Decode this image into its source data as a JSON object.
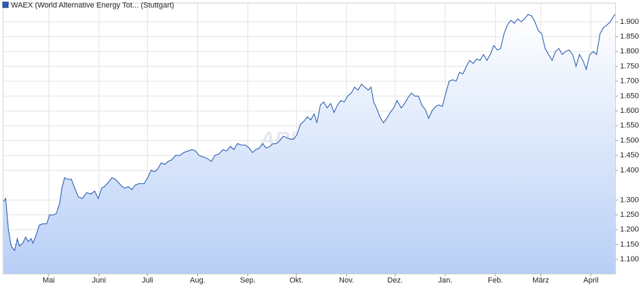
{
  "chart_data": {
    "type": "area",
    "legend_label": "WAEX (World Alternative Energy Tot... (Stuttgart)",
    "watermark": "ARIVA.DE",
    "grid": true,
    "xlim": [
      2,
      380
    ],
    "ylim": [
      1052,
      1962
    ],
    "xticks": [
      {
        "value": 30,
        "label": "Mai"
      },
      {
        "value": 61,
        "label": "Juni"
      },
      {
        "value": 91,
        "label": "Juli"
      },
      {
        "value": 122,
        "label": "Aug."
      },
      {
        "value": 153,
        "label": "Sep."
      },
      {
        "value": 183,
        "label": "Okt."
      },
      {
        "value": 214,
        "label": "Nov."
      },
      {
        "value": 244,
        "label": "Dez."
      },
      {
        "value": 275,
        "label": "Jan."
      },
      {
        "value": 306,
        "label": "Feb."
      },
      {
        "value": 334,
        "label": "März"
      },
      {
        "value": 365,
        "label": "April"
      }
    ],
    "yticks": [
      {
        "value": 1100,
        "label": "1.100"
      },
      {
        "value": 1150,
        "label": "1.150"
      },
      {
        "value": 1200,
        "label": "1.200"
      },
      {
        "value": 1250,
        "label": "1.250"
      },
      {
        "value": 1300,
        "label": "1.300"
      },
      {
        "value": 1400,
        "label": "1.400"
      },
      {
        "value": 1450,
        "label": "1.450"
      },
      {
        "value": 1500,
        "label": "1.500"
      },
      {
        "value": 1550,
        "label": "1.550"
      },
      {
        "value": 1600,
        "label": "1.600"
      },
      {
        "value": 1650,
        "label": "1.650"
      },
      {
        "value": 1700,
        "label": "1.700"
      },
      {
        "value": 1750,
        "label": "1.750"
      },
      {
        "value": 1800,
        "label": "1.800"
      },
      {
        "value": 1850,
        "label": "1.850"
      },
      {
        "value": 1900,
        "label": "1.900"
      }
    ],
    "series": [
      {
        "name": "WAEX (World Alternative Energy Tot... (Stuttgart)",
        "color": "#2a5db0",
        "x": [
          2.1,
          3.4,
          5.1,
          6.8,
          8.9,
          10.6,
          11.9,
          14.0,
          15.7,
          17.4,
          19.1,
          20.3,
          22.4,
          24.1,
          26.3,
          28.8,
          30.5,
          33.0,
          34.7,
          36.8,
          38.1,
          39.8,
          41.5,
          44.0,
          45.7,
          48.3,
          50.8,
          53.4,
          55.9,
          58.4,
          60.6,
          62.7,
          64.4,
          66.9,
          69.0,
          71.2,
          73.7,
          75.4,
          77.1,
          79.2,
          81.3,
          83.4,
          85.6,
          88.9,
          91.1,
          93.2,
          95.3,
          97.4,
          99.5,
          101.7,
          103.8,
          105.9,
          108.4,
          111.0,
          113.5,
          116.1,
          118.6,
          120.7,
          122.8,
          125.4,
          127.9,
          130.5,
          132.6,
          135.1,
          137.7,
          139.8,
          142.3,
          144.4,
          146.5,
          149.1,
          151.6,
          153.8,
          155.9,
          158.0,
          160.1,
          162.2,
          164.3,
          166.5,
          168.6,
          170.7,
          172.8,
          174.9,
          177.0,
          179.2,
          181.3,
          183.4,
          185.5,
          187.6,
          189.8,
          191.9,
          194.0,
          195.7,
          197.8,
          199.9,
          202.0,
          204.2,
          206.3,
          208.4,
          210.5,
          212.6,
          214.7,
          216.9,
          219.0,
          221.1,
          223.2,
          225.3,
          227.4,
          229.1,
          230.8,
          232.5,
          234.6,
          236.8,
          238.9,
          241.0,
          243.1,
          245.2,
          247.8,
          249.9,
          252.0,
          254.1,
          256.2,
          258.4,
          260.5,
          262.6,
          264.7,
          266.8,
          269.0,
          271.1,
          273.2,
          275.3,
          277.4,
          279.5,
          281.7,
          283.8,
          285.9,
          288.0,
          290.1,
          292.2,
          294.4,
          296.5,
          298.6,
          300.7,
          302.8,
          305.0,
          307.1,
          309.2,
          311.3,
          313.4,
          315.5,
          317.7,
          319.8,
          321.9,
          324.0,
          326.1,
          328.3,
          330.4,
          332.5,
          334.6,
          336.7,
          338.8,
          341.0,
          343.1,
          345.2,
          347.3,
          349.4,
          351.5,
          353.7,
          355.8,
          357.9,
          360.0,
          362.1,
          364.3,
          366.4,
          368.5,
          370.6,
          372.7,
          374.9,
          377.0,
          379.1,
          379.9
        ],
        "values": [
          1295,
          1305,
          1200,
          1145,
          1130,
          1170,
          1145,
          1155,
          1175,
          1160,
          1170,
          1155,
          1185,
          1215,
          1220,
          1220,
          1250,
          1250,
          1255,
          1290,
          1340,
          1375,
          1370,
          1370,
          1345,
          1310,
          1305,
          1325,
          1320,
          1330,
          1305,
          1340,
          1345,
          1360,
          1375,
          1370,
          1355,
          1345,
          1340,
          1345,
          1335,
          1350,
          1355,
          1355,
          1375,
          1400,
          1395,
          1405,
          1425,
          1420,
          1430,
          1435,
          1450,
          1450,
          1460,
          1465,
          1470,
          1465,
          1450,
          1445,
          1440,
          1430,
          1450,
          1455,
          1470,
          1465,
          1480,
          1470,
          1490,
          1485,
          1485,
          1475,
          1460,
          1470,
          1475,
          1490,
          1475,
          1480,
          1490,
          1490,
          1500,
          1515,
          1510,
          1505,
          1505,
          1520,
          1555,
          1565,
          1580,
          1570,
          1590,
          1560,
          1620,
          1630,
          1610,
          1625,
          1595,
          1620,
          1635,
          1630,
          1650,
          1660,
          1680,
          1670,
          1690,
          1680,
          1670,
          1680,
          1630,
          1610,
          1580,
          1560,
          1575,
          1595,
          1610,
          1635,
          1610,
          1625,
          1645,
          1660,
          1650,
          1650,
          1620,
          1605,
          1575,
          1600,
          1615,
          1620,
          1615,
          1660,
          1700,
          1705,
          1700,
          1730,
          1725,
          1750,
          1770,
          1760,
          1775,
          1770,
          1790,
          1770,
          1790,
          1820,
          1805,
          1810,
          1860,
          1890,
          1905,
          1895,
          1910,
          1900,
          1910,
          1925,
          1920,
          1900,
          1870,
          1860,
          1810,
          1790,
          1770,
          1800,
          1810,
          1790,
          1800,
          1805,
          1790,
          1750,
          1790,
          1770,
          1740,
          1790,
          1800,
          1790,
          1860,
          1880,
          1890,
          1900,
          1920,
          1925
        ]
      }
    ]
  }
}
